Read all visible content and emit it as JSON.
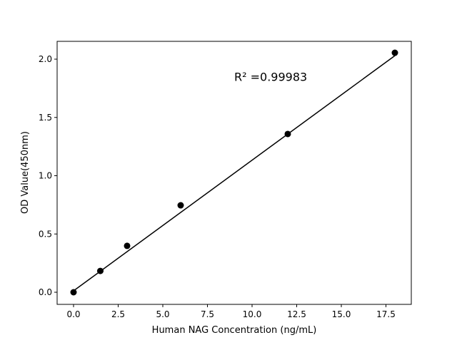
{
  "chart_data": {
    "type": "scatter",
    "title": "",
    "xlabel": "Human NAG Concentration (ng/mL)",
    "ylabel": "OD Value(450nm)",
    "xlim": [
      -0.92,
      18.92
    ],
    "ylim": [
      -0.104,
      2.153
    ],
    "xticks": [
      0,
      2.5,
      5,
      7.5,
      10,
      12.5,
      15,
      17.5
    ],
    "xtick_labels": [
      "0.0",
      "2.5",
      "5.0",
      "7.5",
      "10.0",
      "12.5",
      "15.0",
      "17.5"
    ],
    "yticks": [
      0,
      0.5,
      1,
      1.5,
      2
    ],
    "ytick_labels": [
      "0.0",
      "0.5",
      "1.0",
      "1.5",
      "2.0"
    ],
    "grid": false,
    "points": {
      "x": [
        0,
        1.5,
        3,
        6,
        12,
        18
      ],
      "y": [
        0.0,
        0.183,
        0.398,
        0.746,
        1.358,
        2.055
      ],
      "color": "#000000"
    },
    "fit_line": {
      "x": [
        0,
        18
      ],
      "y": [
        0.012,
        2.03
      ],
      "color": "#000000"
    },
    "annotation": {
      "text": "R² =0.99983",
      "x": 9.0,
      "y": 1.85
    }
  }
}
